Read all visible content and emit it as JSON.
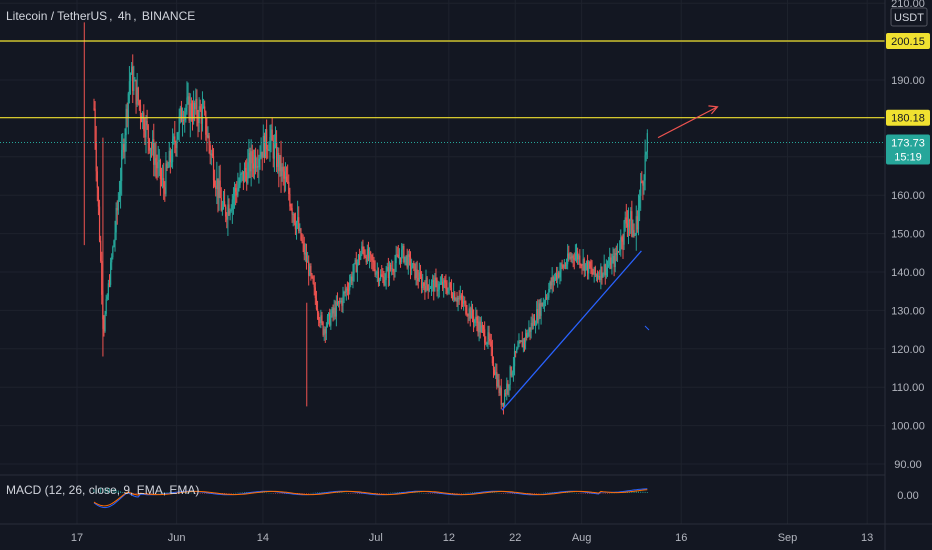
{
  "symbol_bar": {
    "pair": "Litecoin / TetherUS",
    "sep1": ",",
    "interval": "4h",
    "sep2": ",",
    "exchange": "BINANCE"
  },
  "indicator": {
    "label": "MACD (12, 26, close, 9, EMA, EMA)"
  },
  "price_scale": {
    "currency": "USDT",
    "top_partial": "210.00"
  },
  "colors": {
    "background": "#131722",
    "up": "#26a69a",
    "down": "#ef5350",
    "level_line": "#f0e130",
    "trend_line": "#2962ff",
    "arrow": "#ef5350",
    "price_badge": "#26a69a",
    "macd_line": "#2962ff",
    "signal_line": "#ff6d00"
  },
  "chart_data": {
    "type": "candlestick",
    "yaxis": {
      "ticks": [
        90,
        100,
        110,
        120,
        130,
        140,
        150,
        160,
        170,
        190,
        200,
        210
      ],
      "ylim": [
        88,
        212
      ],
      "labels": [
        "90.00",
        "100.00",
        "110.00",
        "120.00",
        "130.00",
        "140.00",
        "150.00",
        "160.00",
        "190.00",
        "210.00"
      ]
    },
    "xaxis": {
      "ticks": [
        "17",
        "Jun",
        "14",
        "Jul",
        "12",
        "22",
        "Aug",
        "16",
        "Sep",
        "13"
      ]
    },
    "horizontal_levels": [
      {
        "value": 200.15,
        "label": "200.15",
        "color": "#f0e130"
      },
      {
        "value": 180.18,
        "label": "180.18",
        "color": "#f0e130"
      }
    ],
    "last_price": {
      "value": 173.73,
      "label": "173.73",
      "countdown": "15:19"
    },
    "trendline": {
      "from_date": "2021-07-20",
      "from_value": 104,
      "to_date": "2021-08-10",
      "to_value": 145.5
    },
    "arrow": {
      "from_value": 175,
      "to_value": 183
    },
    "macd": {
      "zero_label": "0.00"
    },
    "price_path": [
      {
        "date": "2021-05-17",
        "value": 165
      },
      {
        "date": "2021-05-19",
        "value": 205
      },
      {
        "date": "2021-05-21",
        "value": 125
      },
      {
        "date": "2021-05-23",
        "value": 155
      },
      {
        "date": "2021-05-25",
        "value": 192
      },
      {
        "date": "2021-05-27",
        "value": 180
      },
      {
        "date": "2021-05-30",
        "value": 162
      },
      {
        "date": "2021-06-02",
        "value": 183
      },
      {
        "date": "2021-06-05",
        "value": 181
      },
      {
        "date": "2021-06-08",
        "value": 155
      },
      {
        "date": "2021-06-12",
        "value": 168
      },
      {
        "date": "2021-06-15",
        "value": 175
      },
      {
        "date": "2021-06-18",
        "value": 160
      },
      {
        "date": "2021-06-21",
        "value": 140
      },
      {
        "date": "2021-06-23",
        "value": 125
      },
      {
        "date": "2021-06-26",
        "value": 133
      },
      {
        "date": "2021-06-29",
        "value": 146
      },
      {
        "date": "2021-07-02",
        "value": 138
      },
      {
        "date": "2021-07-05",
        "value": 145
      },
      {
        "date": "2021-07-08",
        "value": 137
      },
      {
        "date": "2021-07-12",
        "value": 136
      },
      {
        "date": "2021-07-15",
        "value": 130
      },
      {
        "date": "2021-07-18",
        "value": 122
      },
      {
        "date": "2021-07-20",
        "value": 106
      },
      {
        "date": "2021-07-22",
        "value": 118
      },
      {
        "date": "2021-07-25",
        "value": 128
      },
      {
        "date": "2021-07-28",
        "value": 139
      },
      {
        "date": "2021-07-31",
        "value": 145
      },
      {
        "date": "2021-08-03",
        "value": 139
      },
      {
        "date": "2021-08-06",
        "value": 143
      },
      {
        "date": "2021-08-08",
        "value": 155
      },
      {
        "date": "2021-08-09",
        "value": 149
      },
      {
        "date": "2021-08-10",
        "value": 163
      },
      {
        "date": "2021-08-11",
        "value": 173.73
      }
    ]
  }
}
